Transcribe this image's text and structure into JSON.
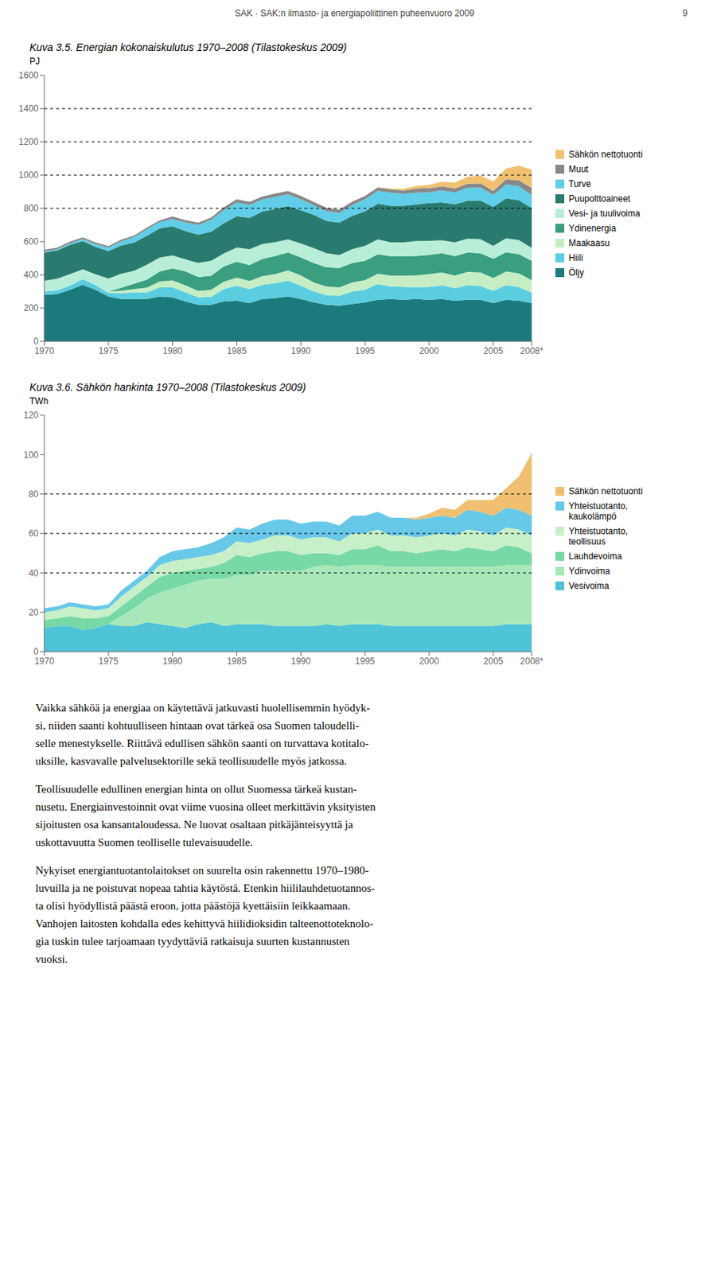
{
  "page_header": "SAK · SAK:n ilmasto- ja energiapoliittinen puheenvuoro 2009",
  "page_number": "9",
  "chart_data": [
    {
      "type": "area",
      "stacked": true,
      "title": "Kuva 3.5. Energian kokonaiskulutus 1970–2008 (Tilastokeskus 2009)",
      "y_label": "PJ",
      "x": [
        1970,
        1971,
        1972,
        1973,
        1974,
        1975,
        1976,
        1977,
        1978,
        1979,
        1980,
        1981,
        1982,
        1983,
        1984,
        1985,
        1986,
        1987,
        1988,
        1989,
        1990,
        1991,
        1992,
        1993,
        1994,
        1995,
        1996,
        1997,
        1998,
        1999,
        2000,
        2001,
        2002,
        2003,
        2004,
        2005,
        2006,
        2007,
        2008
      ],
      "xlim": [
        1970,
        2008
      ],
      "xticks": [
        1970,
        1975,
        1980,
        1985,
        1990,
        1995,
        2000,
        2005,
        {
          "value": 2008,
          "label": "2008*"
        }
      ],
      "ylim": [
        0,
        1600
      ],
      "yticks": [
        0,
        200,
        400,
        600,
        800,
        1000,
        1200,
        1400,
        1600
      ],
      "grid": false,
      "legend": "right",
      "dotted_lines": [
        800,
        1000,
        1200,
        1400
      ],
      "series": [
        {
          "name": "Öljy",
          "color": "#1B7B7C",
          "values": [
            280,
            285,
            310,
            340,
            310,
            270,
            255,
            255,
            255,
            270,
            265,
            240,
            220,
            220,
            240,
            245,
            230,
            255,
            260,
            270,
            255,
            235,
            220,
            215,
            225,
            235,
            250,
            255,
            250,
            255,
            250,
            255,
            245,
            250,
            250,
            230,
            250,
            245,
            230
          ]
        },
        {
          "name": "Hiili",
          "color": "#5BCDE0",
          "values": [
            20,
            22,
            25,
            35,
            28,
            22,
            35,
            40,
            40,
            55,
            60,
            55,
            45,
            48,
            75,
            90,
            85,
            85,
            90,
            95,
            80,
            65,
            58,
            58,
            75,
            75,
            95,
            75,
            78,
            70,
            78,
            82,
            75,
            88,
            82,
            75,
            88,
            82,
            62
          ]
        },
        {
          "name": "Maakaasu",
          "color": "#C5EEC5",
          "values": [
            0,
            0,
            0,
            0,
            0,
            8,
            14,
            20,
            28,
            35,
            42,
            42,
            38,
            42,
            44,
            48,
            48,
            52,
            55,
            62,
            62,
            55,
            52,
            52,
            55,
            58,
            62,
            66,
            68,
            72,
            76,
            77,
            76,
            80,
            82,
            76,
            82,
            82,
            76
          ]
        },
        {
          "name": "Ydinenergia",
          "color": "#3A9E80",
          "values": [
            0,
            0,
            0,
            0,
            0,
            0,
            18,
            32,
            48,
            60,
            72,
            84,
            84,
            84,
            92,
            96,
            96,
            104,
            108,
            108,
            108,
            116,
            116,
            116,
            116,
            116,
            116,
            116,
            116,
            116,
            116,
            116,
            116,
            116,
            116,
            116,
            116,
            116,
            116
          ]
        },
        {
          "name": "Vesi- ja tuulivoima",
          "color": "#B8EED8",
          "values": [
            65,
            70,
            70,
            58,
            65,
            78,
            85,
            78,
            90,
            85,
            78,
            72,
            85,
            90,
            78,
            85,
            96,
            90,
            84,
            78,
            84,
            90,
            84,
            78,
            84,
            90,
            90,
            84,
            84,
            90,
            84,
            78,
            84,
            84,
            84,
            78,
            84,
            84,
            78
          ]
        },
        {
          "name": "Puupolttoaineet",
          "color": "#2A7B6F",
          "values": [
            170,
            170,
            175,
            170,
            165,
            165,
            170,
            170,
            175,
            175,
            175,
            170,
            170,
            175,
            182,
            188,
            188,
            195,
            200,
            200,
            200,
            200,
            195,
            195,
            200,
            208,
            215,
            220,
            220,
            220,
            228,
            228,
            228,
            228,
            234,
            234,
            240,
            240,
            240
          ]
        },
        {
          "name": "Turve",
          "color": "#60CEE8",
          "values": [
            6,
            6,
            10,
            13,
            16,
            20,
            25,
            32,
            38,
            38,
            45,
            52,
            58,
            72,
            78,
            84,
            78,
            72,
            72,
            72,
            65,
            58,
            58,
            58,
            65,
            72,
            78,
            78,
            72,
            72,
            65,
            72,
            72,
            78,
            78,
            72,
            84,
            84,
            78
          ]
        },
        {
          "name": "Muut",
          "color": "#888888",
          "values": [
            10,
            10,
            10,
            10,
            10,
            10,
            10,
            10,
            10,
            10,
            14,
            14,
            14,
            14,
            18,
            18,
            18,
            18,
            20,
            20,
            20,
            20,
            20,
            20,
            20,
            20,
            20,
            20,
            20,
            24,
            24,
            24,
            24,
            24,
            24,
            24,
            30,
            36,
            42
          ]
        },
        {
          "name": "Sähkön nettotuonti",
          "color": "#F0C070",
          "values": [
            0,
            0,
            0,
            0,
            0,
            0,
            0,
            0,
            0,
            0,
            0,
            0,
            0,
            0,
            0,
            0,
            0,
            0,
            0,
            0,
            0,
            0,
            0,
            0,
            0,
            0,
            0,
            5,
            10,
            15,
            20,
            28,
            35,
            42,
            48,
            56,
            66,
            88,
            110
          ]
        }
      ]
    },
    {
      "type": "area",
      "stacked": true,
      "title": "Kuva 3.6. Sähkön hankinta 1970–2008 (Tilastokeskus 2009)",
      "y_label": "TWh",
      "x": [
        1970,
        1971,
        1972,
        1973,
        1974,
        1975,
        1976,
        1977,
        1978,
        1979,
        1980,
        1981,
        1982,
        1983,
        1984,
        1985,
        1986,
        1987,
        1988,
        1989,
        1990,
        1991,
        1992,
        1993,
        1994,
        1995,
        1996,
        1997,
        1998,
        1999,
        2000,
        2001,
        2002,
        2003,
        2004,
        2005,
        2006,
        2007,
        2008
      ],
      "xlim": [
        1970,
        2008
      ],
      "xticks": [
        1970,
        1975,
        1980,
        1985,
        1990,
        1995,
        2000,
        2005,
        {
          "value": 2008,
          "label": "2008*"
        }
      ],
      "ylim": [
        0,
        120
      ],
      "yticks": [
        0,
        20,
        40,
        60,
        80,
        100,
        120
      ],
      "grid": false,
      "legend": "right",
      "dotted_lines": [
        40,
        60,
        80
      ],
      "series": [
        {
          "name": "Vesivoima",
          "color": "#4FC3D8",
          "values": [
            12,
            13,
            13,
            11,
            12,
            14,
            13,
            13,
            15,
            14,
            13,
            12,
            14,
            15,
            13,
            14,
            14,
            14,
            13,
            13,
            13,
            13,
            14,
            13,
            14,
            14,
            14,
            13,
            13,
            13,
            13,
            13,
            13,
            13,
            13,
            13,
            14,
            14,
            14
          ]
        },
        {
          "name": "Ydinvoima",
          "color": "#A8E8B8",
          "values": [
            0,
            0,
            0,
            0,
            0,
            0,
            5,
            9,
            12,
            16,
            19,
            22,
            22,
            22,
            24,
            25,
            25,
            27,
            28,
            28,
            28,
            30,
            30,
            30,
            30,
            30,
            30,
            30,
            30,
            30,
            30,
            30,
            30,
            30,
            30,
            30,
            30,
            30,
            30
          ]
        },
        {
          "name": "Lauhdevoima",
          "color": "#78D8A8",
          "values": [
            4,
            4,
            5,
            6,
            5,
            4,
            5,
            6,
            6,
            8,
            8,
            7,
            6,
            6,
            8,
            10,
            9,
            9,
            10,
            10,
            8,
            7,
            6,
            6,
            8,
            8,
            10,
            8,
            8,
            7,
            8,
            9,
            8,
            10,
            9,
            8,
            10,
            9,
            6
          ]
        },
        {
          "name": "Yhteistuotanto,\nteollisuus",
          "color": "#C8F0C8",
          "values": [
            4,
            4,
            5,
            5,
            4,
            4,
            5,
            5,
            5,
            6,
            6,
            6,
            6,
            6,
            6,
            7,
            7,
            7,
            8,
            8,
            8,
            8,
            8,
            7,
            8,
            8,
            8,
            8,
            8,
            8,
            8,
            8,
            8,
            9,
            9,
            8,
            9,
            9,
            9
          ]
        },
        {
          "name": "Yhteistuotanto,\nkaukolämpö",
          "color": "#68C8E8",
          "values": [
            2,
            2,
            2,
            2,
            2,
            2,
            3,
            3,
            3,
            4,
            5,
            5,
            5,
            6,
            7,
            7,
            7,
            8,
            8,
            8,
            8,
            8,
            8,
            8,
            9,
            9,
            9,
            9,
            9,
            9,
            9,
            9,
            9,
            10,
            10,
            10,
            10,
            10,
            10
          ]
        },
        {
          "name": "Sähkön nettotuonti",
          "color": "#F0C070",
          "values": [
            0,
            0,
            0,
            0,
            0,
            0,
            0,
            0,
            0,
            0,
            0,
            0,
            0,
            0,
            0,
            0,
            0,
            0,
            0,
            0,
            0,
            0,
            0,
            0,
            0,
            0,
            0,
            0,
            0,
            1,
            2,
            4,
            4,
            5,
            6,
            8,
            10,
            17,
            32
          ]
        }
      ]
    }
  ],
  "body_paragraphs": [
    "Vaikka sähköä ja energiaa on käytettävä jatkuvasti huolellisemmin hyödyk-\nsi, niiden saanti kohtuulliseen hintaan ovat tärkeä osa Suomen taloudelli-\nselle menestykselle. Riittävä edullisen sähkön saanti on turvattava kotitalo-\nuksille, kasvavalle palvelusektorille sekä teollisuudelle myös jatkossa.",
    "Teollisuudelle edullinen energian hinta on ollut Suomessa tärkeä kustan-\nnusetu. Energiainvestoinnit ovat viime vuosina olleet merkittävin yksityisten\nsijoitusten osa kansantaloudessa. Ne luovat osaltaan pitkäjänteisyyttä ja\nuskottavuutta Suomen teolliselle tulevaisuudelle.",
    "Nykyiset energiantuotantolaitokset on suurelta osin rakennettu 1970–1980-\nluvuilla ja ne poistuvat nopeaa tahtia käytöstä. Etenkin hiililauhdetuotannos-\nta olisi hyödyllistä päästä eroon, jotta päästöjä kyettäisiin leikkaamaan.\nVanhojen laitosten kohdalla edes kehittyvä hiilidioksidin talteenottoteknolo-\ngia tuskin tulee tarjoamaan tyydyttäviä ratkaisuja suurten kustannusten\nvuoksi."
  ]
}
